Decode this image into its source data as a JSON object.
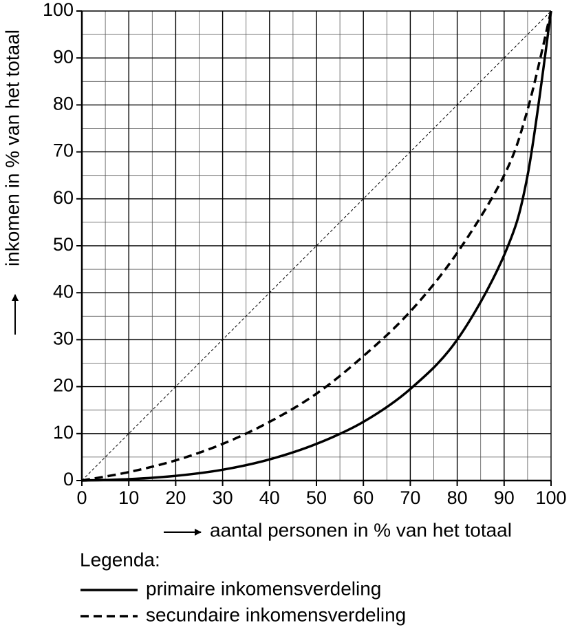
{
  "chart_data": {
    "type": "line",
    "x": [
      0,
      10,
      20,
      30,
      40,
      50,
      60,
      70,
      80,
      90,
      95,
      100
    ],
    "series": [
      {
        "name": "primaire inkomensverdeling",
        "color": "#000000",
        "style": "solid",
        "values": [
          0,
          0.3,
          1,
          2.3,
          4.5,
          7.8,
          12.5,
          19.5,
          30,
          48,
          65,
          100
        ]
      },
      {
        "name": "secundaire inkomensverdeling",
        "color": "#000000",
        "style": "dashed",
        "values": [
          0,
          1.8,
          4.3,
          7.8,
          12.5,
          18.5,
          26.5,
          36,
          48.5,
          65,
          79,
          100
        ]
      }
    ],
    "reference_line": {
      "x": [
        0,
        100
      ],
      "y": [
        0,
        100
      ]
    },
    "xlabel": "aantal personen in % van het totaal",
    "ylabel": "inkomen in % van het totaal",
    "legend_title": "Legenda:",
    "legend_position": "bottom",
    "xlim": [
      0,
      100
    ],
    "ylim": [
      0,
      100
    ],
    "xticks": [
      0,
      10,
      20,
      30,
      40,
      50,
      60,
      70,
      80,
      90,
      100
    ],
    "yticks": [
      0,
      10,
      20,
      30,
      40,
      50,
      60,
      70,
      80,
      90,
      100
    ],
    "minor_ticks": [
      5,
      15,
      25,
      35,
      45,
      55,
      65,
      75,
      85,
      95
    ],
    "grid": true
  }
}
